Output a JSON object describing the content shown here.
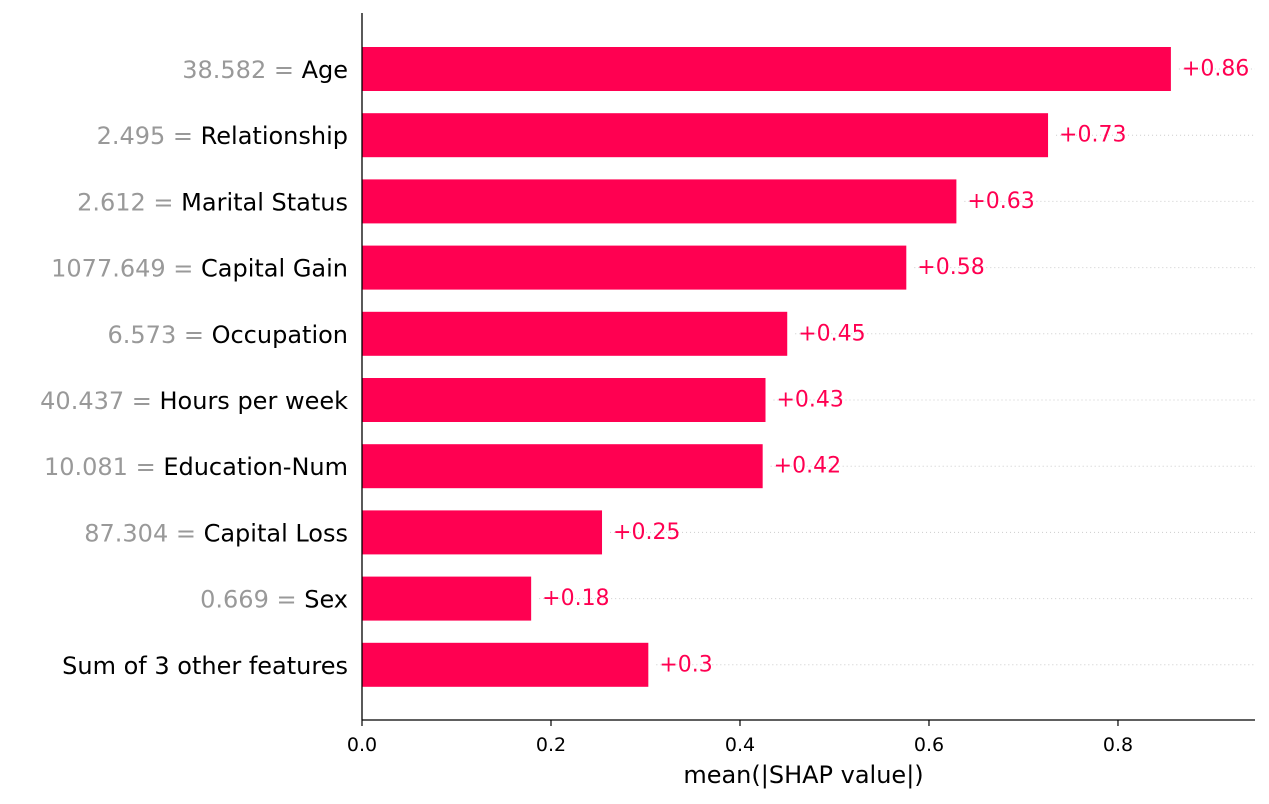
{
  "chart_data": {
    "type": "bar",
    "orientation": "horizontal",
    "xlabel": "mean(|SHAP value|)",
    "xlim": [
      0.0,
      0.945
    ],
    "xticks": [
      {
        "value": 0.0,
        "label": "0.0"
      },
      {
        "value": 0.2,
        "label": "0.2"
      },
      {
        "value": 0.4,
        "label": "0.4"
      },
      {
        "value": 0.6,
        "label": "0.6"
      },
      {
        "value": 0.8,
        "label": "0.8"
      }
    ],
    "bar_color": "#ff0051",
    "label_color": "#ff0051",
    "feature_value_color": "#999999",
    "features": [
      {
        "value_prefix": "38.582 = ",
        "name": "Age",
        "value": 0.856,
        "label": "+0.86"
      },
      {
        "value_prefix": "2.495 = ",
        "name": "Relationship",
        "value": 0.726,
        "label": "+0.73"
      },
      {
        "value_prefix": "2.612 = ",
        "name": "Marital Status",
        "value": 0.629,
        "label": "+0.63"
      },
      {
        "value_prefix": "1077.649 = ",
        "name": "Capital Gain",
        "value": 0.576,
        "label": "+0.58"
      },
      {
        "value_prefix": "6.573 = ",
        "name": "Occupation",
        "value": 0.45,
        "label": "+0.45"
      },
      {
        "value_prefix": "40.437 = ",
        "name": "Hours per week",
        "value": 0.427,
        "label": "+0.43"
      },
      {
        "value_prefix": "10.081 = ",
        "name": "Education-Num",
        "value": 0.424,
        "label": "+0.42"
      },
      {
        "value_prefix": "87.304 = ",
        "name": "Capital Loss",
        "value": 0.254,
        "label": "+0.25"
      },
      {
        "value_prefix": "0.669 = ",
        "name": "Sex",
        "value": 0.179,
        "label": "+0.18"
      },
      {
        "value_prefix": "",
        "name": "Sum of 3 other features",
        "value": 0.303,
        "label": "+0.3"
      }
    ]
  }
}
